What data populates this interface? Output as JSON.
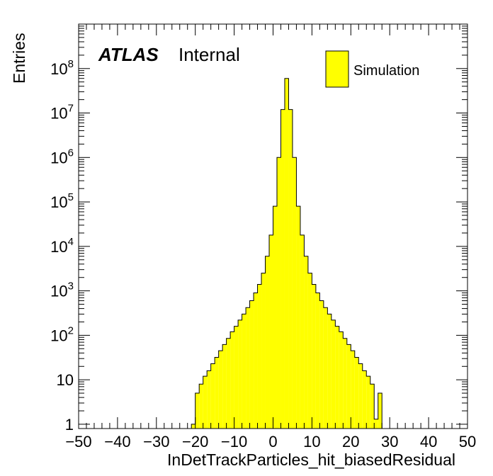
{
  "chart_data": {
    "type": "bar",
    "histogram": true,
    "xlabel": "InDetTrackParticles_hit_biasedResidual",
    "ylabel": "Entries",
    "xlim": [
      -50,
      50
    ],
    "ylim": [
      0.8,
      1000000000.0
    ],
    "yscale": "log",
    "xticks": [
      -50,
      -40,
      -30,
      -20,
      -10,
      0,
      10,
      20,
      30,
      40,
      50
    ],
    "xtick_labels": [
      "−50",
      "−40",
      "−30",
      "−20",
      "−10",
      "0",
      "10",
      "20",
      "30",
      "40",
      "50"
    ],
    "yticks": [
      {
        "value": 1,
        "base": "1",
        "exp": ""
      },
      {
        "value": 10,
        "base": "10",
        "exp": ""
      },
      {
        "value": 100,
        "base": "10",
        "exp": "2"
      },
      {
        "value": 1000,
        "base": "10",
        "exp": "3"
      },
      {
        "value": 10000,
        "base": "10",
        "exp": "4"
      },
      {
        "value": 100000,
        "base": "10",
        "exp": "5"
      },
      {
        "value": 1000000,
        "base": "10",
        "exp": "6"
      },
      {
        "value": 10000000,
        "base": "10",
        "exp": "7"
      },
      {
        "value": 100000000,
        "base": "10",
        "exp": "8"
      }
    ],
    "bin_width": 1,
    "bin_edges_start": -21,
    "series": [
      {
        "name": "Simulation",
        "color": "#ffff00",
        "values": [
          1,
          5,
          8,
          12,
          16,
          23,
          32,
          45,
          62,
          85,
          120,
          160,
          220,
          300,
          420,
          600,
          900,
          1400,
          2500,
          6000,
          18000,
          80000,
          1000000,
          12000000,
          60000000,
          12000000,
          1000000,
          80000,
          18000,
          6000,
          2500,
          1400,
          900,
          600,
          420,
          300,
          220,
          160,
          120,
          85,
          62,
          45,
          32,
          23,
          16,
          12,
          8,
          1.3,
          5
        ]
      }
    ],
    "legend_position": "top-right",
    "grid": false
  },
  "annotation": {
    "experiment": "ATLAS",
    "status": "Internal"
  },
  "legend": {
    "label": "Simulation"
  }
}
